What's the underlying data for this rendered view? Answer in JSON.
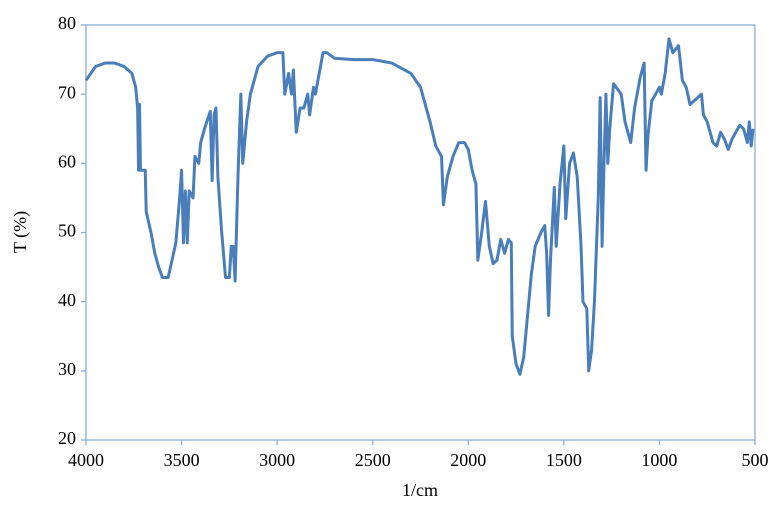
{
  "chart_data": {
    "type": "line",
    "x_label": "1/cm",
    "y_label": "T (%)",
    "xlim": [
      4000,
      500
    ],
    "ylim": [
      20,
      80
    ],
    "xticks": [
      4000,
      3500,
      3000,
      2500,
      2000,
      1500,
      1000,
      500
    ],
    "yticks": [
      20,
      30,
      40,
      50,
      60,
      70,
      80
    ],
    "color": "#4a7ebb",
    "x": [
      4000,
      3950,
      3900,
      3850,
      3800,
      3760,
      3740,
      3730,
      3725,
      3720,
      3715,
      3700,
      3690,
      3685,
      3660,
      3640,
      3620,
      3600,
      3570,
      3550,
      3530,
      3510,
      3500,
      3490,
      3480,
      3470,
      3460,
      3440,
      3430,
      3410,
      3400,
      3380,
      3350,
      3340,
      3330,
      3320,
      3310,
      3290,
      3270,
      3250,
      3240,
      3230,
      3220,
      3205,
      3190,
      3180,
      3160,
      3140,
      3100,
      3050,
      3000,
      2970,
      2960,
      2940,
      2925,
      2915,
      2900,
      2880,
      2860,
      2840,
      2830,
      2810,
      2800,
      2780,
      2760,
      2740,
      2700,
      2600,
      2500,
      2400,
      2300,
      2250,
      2200,
      2170,
      2140,
      2130,
      2110,
      2080,
      2050,
      2020,
      2000,
      1980,
      1960,
      1950,
      1930,
      1910,
      1890,
      1870,
      1850,
      1830,
      1810,
      1790,
      1775,
      1770,
      1750,
      1730,
      1710,
      1690,
      1670,
      1650,
      1620,
      1600,
      1590,
      1580,
      1570,
      1550,
      1540,
      1520,
      1500,
      1490,
      1470,
      1450,
      1430,
      1410,
      1400,
      1380,
      1370,
      1355,
      1340,
      1320,
      1310,
      1300,
      1290,
      1280,
      1270,
      1260,
      1240,
      1200,
      1180,
      1150,
      1130,
      1100,
      1080,
      1070,
      1060,
      1040,
      1020,
      1000,
      990,
      970,
      950,
      930,
      900,
      880,
      860,
      840,
      800,
      780,
      770,
      750,
      720,
      700,
      680,
      660,
      640,
      620,
      600,
      580,
      560,
      540,
      530,
      520,
      510
    ],
    "values": [
      72,
      74,
      74.5,
      74.5,
      74,
      73,
      71,
      68,
      59,
      68.5,
      59,
      59,
      59,
      53,
      50,
      47,
      45,
      43.5,
      43.5,
      46,
      48.5,
      55,
      59,
      48.5,
      56,
      48.5,
      56,
      55,
      61,
      60,
      63,
      65,
      67.5,
      57.5,
      67,
      68,
      58,
      50,
      43.5,
      43.5,
      48,
      48,
      43,
      58,
      70,
      60,
      66,
      70,
      74,
      75.5,
      76,
      76,
      70,
      73,
      70,
      73.5,
      64.5,
      68,
      68,
      70,
      67,
      71,
      70,
      73,
      76,
      76,
      75.2,
      75,
      75,
      74.5,
      73,
      71,
      66,
      62.5,
      61,
      54,
      58,
      61,
      63,
      63,
      62,
      59,
      57,
      46,
      50,
      54.5,
      48,
      45.5,
      46,
      49,
      47,
      49,
      48.5,
      35,
      31,
      29.5,
      32,
      38,
      44,
      48,
      50,
      51,
      47,
      38,
      46,
      56.5,
      48,
      57,
      62.5,
      52,
      60,
      61.5,
      58,
      48,
      40,
      39,
      30,
      33,
      40,
      55,
      69.5,
      48,
      60,
      70,
      60,
      65,
      71.5,
      70,
      66,
      63,
      68,
      72.5,
      74.5,
      59,
      64,
      69,
      70,
      71,
      70,
      73,
      78,
      76,
      77,
      72,
      71,
      68.5,
      69.5,
      70,
      67,
      66,
      63,
      62.5,
      64.5,
      63.5,
      62,
      63.5,
      64.5,
      65.5,
      65,
      63,
      66,
      62.5,
      65
    ]
  }
}
